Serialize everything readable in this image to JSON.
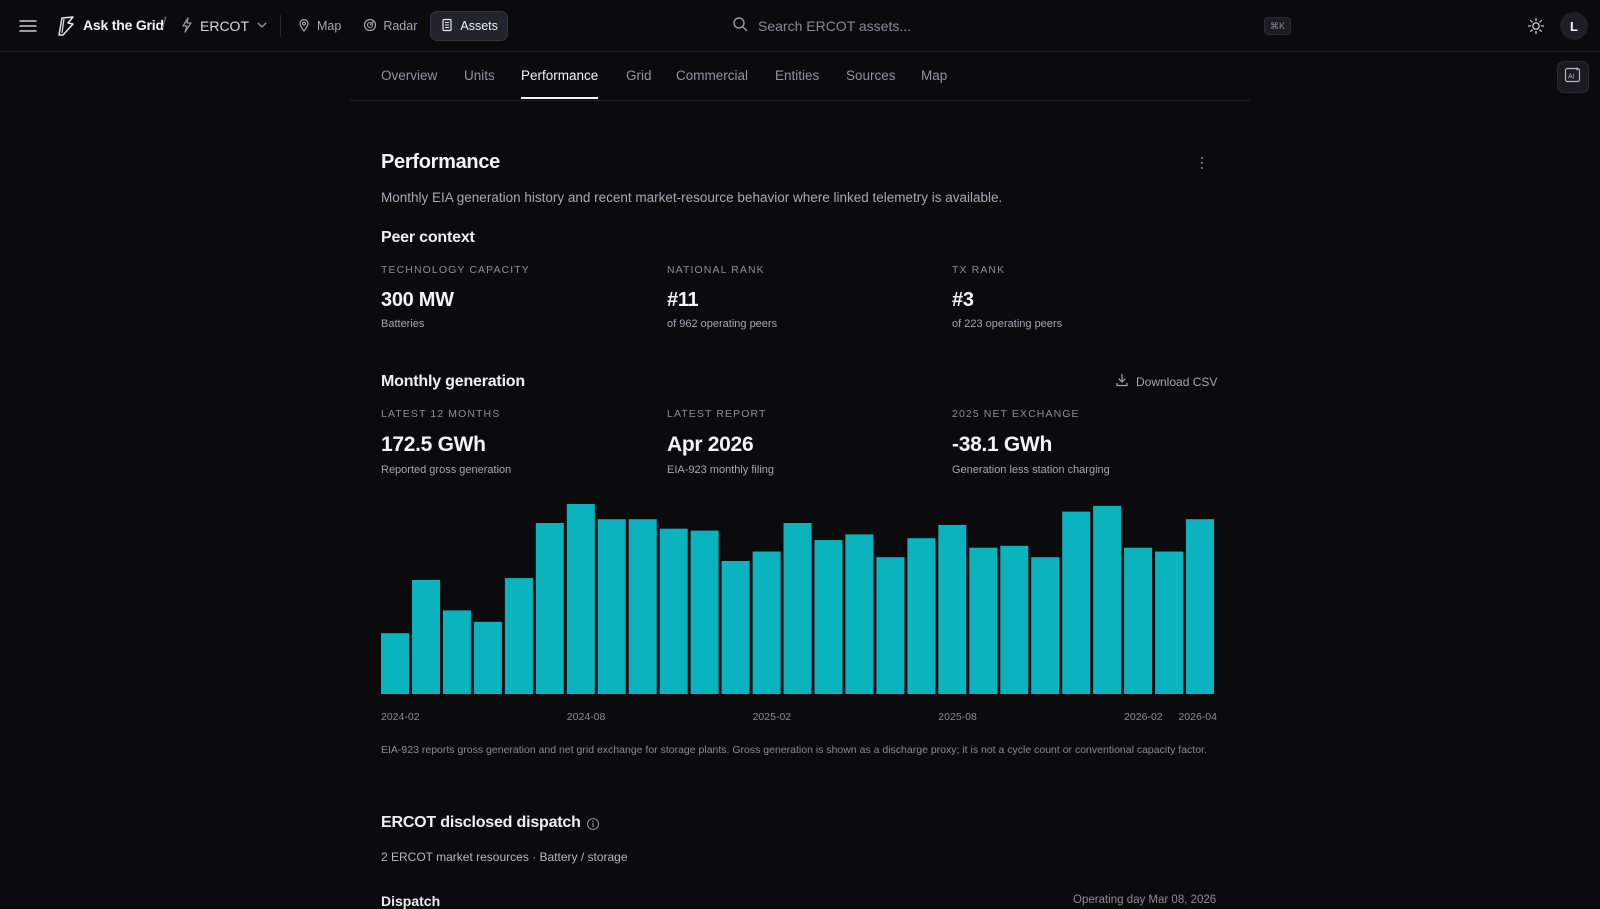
{
  "topbar": {
    "brand": "Ask the Grid",
    "separator": "/",
    "region": "ERCOT",
    "nav": [
      {
        "label": "Map",
        "icon": "map-icon",
        "active": false
      },
      {
        "label": "Radar",
        "icon": "radar-icon",
        "active": false
      },
      {
        "label": "Assets",
        "icon": "assets-icon",
        "active": true
      }
    ],
    "search_placeholder": "Search ERCOT assets...",
    "shortcut": "⌘K",
    "avatar_initial": "L"
  },
  "tabs": [
    "Overview",
    "Units",
    "Performance",
    "Grid",
    "Commercial",
    "Entities",
    "Sources",
    "Map"
  ],
  "active_tab": "Performance",
  "performance": {
    "title": "Performance",
    "subtitle": "Monthly EIA generation history and recent market-resource behavior where linked telemetry is available."
  },
  "peer": {
    "title": "Peer context",
    "stats": [
      {
        "label": "TECHNOLOGY CAPACITY",
        "value": "300 MW",
        "sub": "Batteries"
      },
      {
        "label": "NATIONAL RANK",
        "value": "#11",
        "sub": "of 962 operating peers"
      },
      {
        "label": "TX RANK",
        "value": "#3",
        "sub": "of 223 operating peers"
      }
    ]
  },
  "monthly": {
    "title": "Monthly generation",
    "download_label": "Download CSV",
    "stats": [
      {
        "label": "LATEST 12 MONTHS",
        "value": "172.5 GWh",
        "sub": "Reported gross generation"
      },
      {
        "label": "LATEST REPORT",
        "value": "Apr 2026",
        "sub": "EIA-923 monthly filing"
      },
      {
        "label": "2025 NET EXCHANGE",
        "value": "-38.1 GWh",
        "sub": "Generation less station charging"
      }
    ],
    "footnote": "EIA-923 reports gross generation and net grid exchange for storage plants. Gross generation is shown as a discharge proxy; it is not a cycle count or conventional capacity factor."
  },
  "chart_data": {
    "type": "bar",
    "title": "",
    "xlabel": "",
    "ylabel": "",
    "color": "#0bb3bf",
    "categories": [
      "2024-02",
      "2024-03",
      "2024-04",
      "2024-05",
      "2024-06",
      "2024-07",
      "2024-08",
      "2024-09",
      "2024-10",
      "2024-11",
      "2024-12",
      "2025-01",
      "2025-02",
      "2025-03",
      "2025-04",
      "2025-05",
      "2025-06",
      "2025-07",
      "2025-08",
      "2025-09",
      "2025-10",
      "2025-11",
      "2025-12",
      "2026-01",
      "2026-02",
      "2026-03",
      "2026-04"
    ],
    "tick_labels": [
      "2024-02",
      "2024-08",
      "2025-02",
      "2025-08",
      "2026-02",
      "2026-04"
    ],
    "values": [
      32,
      60,
      44,
      38,
      61,
      90,
      100,
      92,
      92,
      87,
      86,
      70,
      75,
      90,
      81,
      84,
      72,
      82,
      89,
      77,
      78,
      72,
      96,
      99,
      77,
      75,
      92
    ],
    "ylim": [
      0,
      100
    ],
    "grid": false,
    "legend": "none"
  },
  "dispatch": {
    "title": "ERCOT disclosed dispatch",
    "meta": "2 ERCOT market resources · Battery / storage",
    "section": "Dispatch",
    "date": "Operating day Mar 08, 2026"
  },
  "colors": {
    "background": "#0b0b0e",
    "accent": "#0bb3bf",
    "text": "#ececf0",
    "muted": "#8d8d96"
  }
}
